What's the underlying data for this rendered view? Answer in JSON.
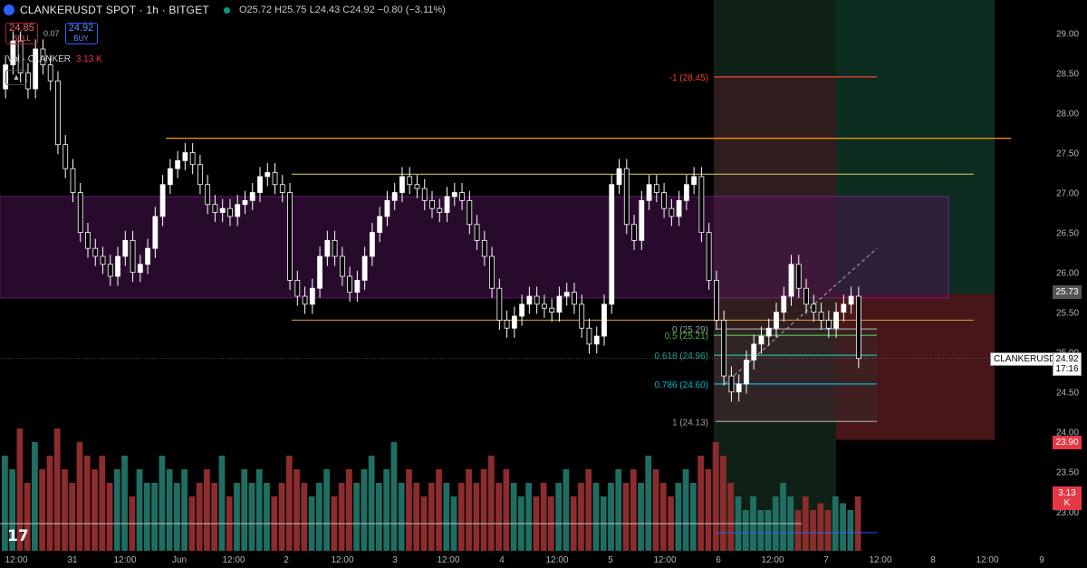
{
  "header": {
    "symbol": "CLANKERUSDT SPOT · 1h · BITGET",
    "ohlc": "O25.72 H25.75 L24.43 C24.92 −0.80 (−3.11%)"
  },
  "trade": {
    "sell_price": "24.85",
    "sell_label": "SELL",
    "spread": "0.07",
    "buy_price": "24.92",
    "buy_label": "BUY"
  },
  "volume_label": {
    "name": "Vol · CLANKER",
    "value": "3.13 K"
  },
  "collapse_icon": "chevron-up-icon",
  "tv_logo": "17",
  "tags": {
    "ticker": "CLANKERUSDT",
    "last_price": "24.92",
    "countdown": "17:16",
    "level_gray": "25.73",
    "level_red": "23.90",
    "volume": "3.13 K"
  },
  "colors": {
    "up": "#26a69a",
    "down": "#ef5350",
    "candle": "#ffffff",
    "orange": "#ff9800",
    "purple_band": "#9c27b0",
    "fib_gray": "#9e9e9e",
    "fib_green": "#4caf50",
    "fib_cyan": "#00bcd4",
    "fib_red": "#f44336"
  },
  "chart_data": {
    "type": "candlestick",
    "title": "CLANKERUSDT SPOT · 1h · BITGET",
    "ylim": [
      22.6,
      29.3
    ],
    "y_ticks": [
      "29.00",
      "28.50",
      "28.00",
      "27.50",
      "27.00",
      "26.50",
      "26.00",
      "25.50",
      "25.00",
      "24.50",
      "24.00",
      "23.50",
      "23.00"
    ],
    "x_ticks": [
      "12:00",
      "31",
      "12:00",
      "Jun",
      "12:00",
      "2",
      "12:00",
      "3",
      "12:00",
      "4",
      "12:00",
      "5",
      "12:00",
      "6",
      "12:00",
      "7",
      "12:00",
      "8",
      "12:00",
      "9"
    ],
    "closes": [
      28.6,
      28.9,
      28.5,
      28.3,
      28.8,
      28.6,
      28.4,
      27.6,
      27.3,
      27.0,
      26.5,
      26.3,
      26.2,
      26.1,
      25.95,
      26.2,
      26.4,
      26.0,
      26.1,
      26.3,
      26.7,
      27.1,
      27.3,
      27.4,
      27.5,
      27.35,
      27.1,
      26.85,
      26.75,
      26.8,
      26.7,
      26.85,
      26.9,
      27.0,
      27.2,
      27.25,
      27.1,
      27.0,
      25.9,
      25.7,
      25.6,
      25.8,
      26.2,
      26.4,
      26.2,
      25.95,
      25.75,
      25.9,
      26.2,
      26.5,
      26.7,
      26.9,
      27.0,
      27.2,
      27.1,
      27.05,
      26.9,
      26.8,
      26.75,
      26.95,
      27.0,
      26.9,
      26.6,
      26.4,
      26.2,
      25.8,
      25.4,
      25.3,
      25.45,
      25.6,
      25.7,
      25.6,
      25.55,
      25.5,
      25.7,
      25.75,
      25.6,
      25.3,
      25.1,
      25.2,
      25.6,
      27.1,
      27.3,
      26.6,
      26.4,
      26.9,
      27.1,
      27.0,
      26.8,
      26.7,
      26.9,
      27.1,
      27.2,
      26.5,
      25.9,
      25.4,
      24.7,
      24.5,
      24.6,
      24.9,
      25.1,
      25.2,
      25.3,
      25.5,
      25.7,
      26.1,
      25.8,
      25.6,
      25.5,
      25.4,
      25.3,
      25.5,
      25.6,
      25.7,
      24.92
    ],
    "volumes": [
      0.7,
      0.6,
      0.9,
      0.5,
      0.8,
      0.6,
      0.7,
      0.9,
      0.6,
      0.5,
      0.8,
      0.7,
      0.6,
      0.7,
      0.5,
      0.6,
      0.7,
      0.4,
      0.6,
      0.5,
      0.5,
      0.7,
      0.6,
      0.5,
      0.6,
      0.4,
      0.5,
      0.6,
      0.5,
      0.7,
      0.4,
      0.5,
      0.6,
      0.5,
      0.6,
      0.5,
      0.4,
      0.5,
      0.7,
      0.6,
      0.5,
      0.4,
      0.5,
      0.6,
      0.4,
      0.5,
      0.6,
      0.5,
      0.6,
      0.7,
      0.5,
      0.6,
      0.8,
      0.5,
      0.6,
      0.5,
      0.4,
      0.5,
      0.6,
      0.5,
      0.4,
      0.5,
      0.6,
      0.5,
      0.6,
      0.7,
      0.5,
      0.6,
      0.5,
      0.4,
      0.5,
      0.4,
      0.5,
      0.4,
      0.5,
      0.6,
      0.4,
      0.5,
      0.6,
      0.5,
      0.4,
      0.5,
      0.6,
      0.5,
      0.6,
      0.5,
      0.7,
      0.6,
      0.5,
      0.4,
      0.5,
      0.6,
      0.5,
      0.7,
      0.6,
      0.8,
      0.7,
      0.5,
      0.4,
      0.3,
      0.4,
      0.3,
      0.3,
      0.4,
      0.5,
      0.4,
      0.3,
      0.4,
      0.3,
      0.35,
      0.3,
      0.4,
      0.35,
      0.3,
      0.4
    ],
    "horizontal_levels": [
      {
        "name": "resistance-high",
        "value": 27.68,
        "color": "orange"
      },
      {
        "name": "range-top",
        "value": 27.23,
        "color": "yellow"
      },
      {
        "name": "range-bottom",
        "value": 25.4,
        "color": "orange"
      }
    ],
    "supply_zone": {
      "top": 26.95,
      "bottom": 25.68
    },
    "fibonacci": [
      {
        "ratio": "-1",
        "value": 28.45,
        "label": "-1 (28.45)"
      },
      {
        "ratio": "0",
        "value": 25.29,
        "label": "0 (25.29)"
      },
      {
        "ratio": "0.5",
        "value": 25.21,
        "label": "0.5 (25.21)"
      },
      {
        "ratio": "0.618",
        "value": 24.96,
        "label": "0.618 (24.96)"
      },
      {
        "ratio": "0.786",
        "value": 24.6,
        "label": "0.786 (24.60)"
      },
      {
        "ratio": "1",
        "value": 24.13,
        "label": "1 (24.13)"
      }
    ]
  }
}
